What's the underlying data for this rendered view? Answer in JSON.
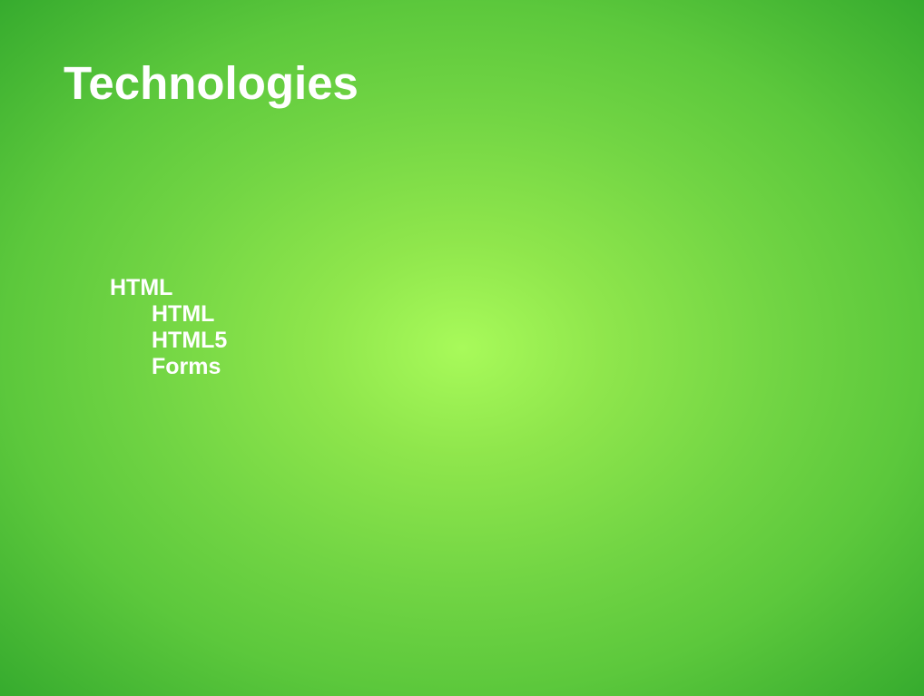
{
  "slide": {
    "title": "Technologies",
    "outline": {
      "top_item": "HTML",
      "sub_items": [
        "HTML",
        "HTML5",
        "Forms"
      ]
    }
  }
}
